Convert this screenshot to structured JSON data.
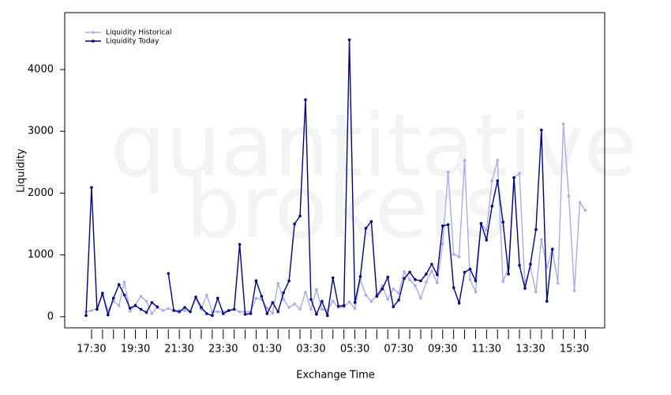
{
  "chart_data": {
    "type": "line",
    "watermark": [
      "quantitative",
      "brokers"
    ],
    "x_label": "Exchange Time",
    "y_label": "Liquidity",
    "categories": [
      null,
      "17:30",
      null,
      null,
      null,
      null,
      null,
      null,
      null,
      "19:30",
      null,
      null,
      null,
      null,
      null,
      null,
      null,
      "21:30",
      null,
      null,
      null,
      null,
      null,
      null,
      null,
      "23:30",
      null,
      null,
      null,
      null,
      null,
      null,
      null,
      "01:30",
      null,
      null,
      null,
      null,
      null,
      null,
      null,
      "03:30",
      null,
      null,
      null,
      null,
      null,
      null,
      null,
      "05:30",
      null,
      null,
      null,
      null,
      null,
      null,
      null,
      "07:30",
      null,
      null,
      null,
      null,
      null,
      null,
      null,
      "09:30",
      null,
      null,
      null,
      null,
      null,
      null,
      null,
      "11:30",
      null,
      null,
      null,
      null,
      null,
      null,
      null,
      "13:30",
      null,
      null,
      null,
      null,
      null,
      null,
      null,
      "15:30",
      null,
      null
    ],
    "series": [
      {
        "name": "Liquidity Historical",
        "color": "#aaaaee",
        "values": [
          80,
          100,
          130,
          350,
          100,
          250,
          180,
          560,
          90,
          200,
          330,
          250,
          50,
          150,
          100,
          130,
          100,
          100,
          100,
          80,
          300,
          120,
          350,
          80,
          80,
          80,
          100,
          120,
          80,
          80,
          80,
          300,
          280,
          140,
          60,
          540,
          280,
          150,
          210,
          120,
          400,
          120,
          440,
          120,
          100,
          250,
          150,
          160,
          240,
          130,
          600,
          350,
          250,
          350,
          500,
          280,
          450,
          380,
          730,
          600,
          500,
          300,
          560,
          740,
          550,
          1180,
          2340,
          1010,
          970,
          2530,
          600,
          400,
          1500,
          1400,
          2200,
          2530,
          570,
          800,
          2250,
          2320,
          520,
          800,
          400,
          1250,
          800,
          1100,
          540,
          3120,
          1950,
          420,
          1850,
          1720
        ]
      },
      {
        "name": "Liquidity Today",
        "color": "#00008b",
        "values": [
          20,
          2090,
          120,
          380,
          30,
          300,
          520,
          350,
          140,
          180,
          120,
          70,
          230,
          160,
          null,
          700,
          100,
          80,
          150,
          80,
          320,
          150,
          50,
          20,
          300,
          50,
          100,
          120,
          1170,
          40,
          50,
          580,
          330,
          50,
          230,
          80,
          390,
          580,
          1500,
          1630,
          3510,
          280,
          40,
          250,
          20,
          630,
          170,
          180,
          4480,
          230,
          650,
          1430,
          1540,
          330,
          450,
          640,
          160,
          270,
          620,
          720,
          600,
          580,
          690,
          850,
          680,
          1470,
          1490,
          470,
          220,
          720,
          770,
          580,
          1510,
          1240,
          1790,
          2200,
          1530,
          690,
          2250,
          830,
          460,
          850,
          1410,
          3020,
          250,
          1090,
          null,
          null,
          null,
          null,
          null,
          null
        ]
      }
    ],
    "ylim": [
      -180,
      4920
    ],
    "yticks": [
      0,
      1000,
      2000,
      3000,
      4000
    ],
    "grid": false,
    "legend": "top-left"
  }
}
